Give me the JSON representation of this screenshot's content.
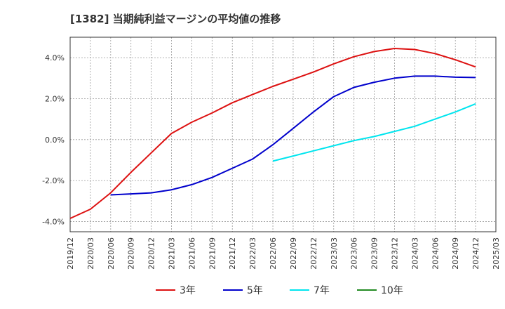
{
  "chart_data": {
    "type": "line",
    "title": "[1382]  当期純利益マージンの平均値の推移",
    "xlabel": "",
    "ylabel": "",
    "ylim": [
      -4.5,
      5.0
    ],
    "yticks": [
      -4.0,
      -2.0,
      0.0,
      2.0,
      4.0
    ],
    "ytick_labels": [
      "-4.0%",
      "-2.0%",
      "0.0%",
      "2.0%",
      "4.0%"
    ],
    "xtick_labels": [
      "2019/12",
      "2020/03",
      "2020/06",
      "2020/09",
      "2020/12",
      "2021/03",
      "2021/06",
      "2021/09",
      "2021/12",
      "2022/03",
      "2022/06",
      "2022/09",
      "2022/12",
      "2023/03",
      "2023/06",
      "2023/09",
      "2023/12",
      "2024/03",
      "2024/06",
      "2024/09",
      "2024/12",
      "2025/03"
    ],
    "grid": true,
    "legend_position": "bottom",
    "series": [
      {
        "name": "3年",
        "color": "#dd1111",
        "start_index": 0,
        "values": [
          -3.85,
          -3.4,
          -2.6,
          -1.6,
          -0.65,
          0.3,
          0.85,
          1.3,
          1.8,
          2.2,
          2.6,
          2.95,
          3.3,
          3.7,
          4.05,
          4.3,
          4.45,
          4.4,
          4.2,
          3.9,
          3.55
        ]
      },
      {
        "name": "5年",
        "color": "#0000cc",
        "start_index": 2,
        "values": [
          -2.7,
          -2.65,
          -2.6,
          -2.45,
          -2.2,
          -1.85,
          -1.4,
          -0.95,
          -0.25,
          0.55,
          1.35,
          2.1,
          2.55,
          2.8,
          3.0,
          3.1,
          3.1,
          3.05,
          3.03
        ]
      },
      {
        "name": "7年",
        "color": "#00e5ee",
        "start_index": 10,
        "values": [
          -1.05,
          -0.8,
          -0.55,
          -0.3,
          -0.05,
          0.15,
          0.4,
          0.65,
          1.0,
          1.35,
          1.75
        ]
      },
      {
        "name": "10年",
        "color": "#228b22",
        "start_index": 0,
        "values": []
      }
    ]
  }
}
